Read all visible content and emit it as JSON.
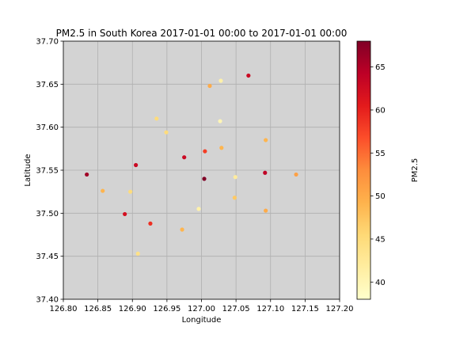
{
  "chart_data": {
    "type": "scatter",
    "title": "PM2.5 in South Korea 2017-01-01 00:00 to 2017-01-01 00:00",
    "xlabel": "Longitude",
    "ylabel": "Latitude",
    "xlim": [
      126.8,
      127.2
    ],
    "ylim": [
      37.4,
      37.7
    ],
    "xticks": [
      "126.80",
      "126.85",
      "126.90",
      "126.95",
      "127.00",
      "127.05",
      "127.10",
      "127.15",
      "127.20"
    ],
    "yticks": [
      "37.40",
      "37.45",
      "37.50",
      "37.55",
      "37.60",
      "37.65",
      "37.70"
    ],
    "grid": true,
    "background": "#d3d3d3",
    "colorbar": {
      "label": "PM2.5",
      "range": [
        38,
        68
      ],
      "ticks": [
        "40",
        "45",
        "50",
        "55",
        "60",
        "65"
      ],
      "colormap": "YlOrRd"
    },
    "points": [
      {
        "x": 126.834,
        "y": 37.545,
        "value": 66
      },
      {
        "x": 126.857,
        "y": 37.526,
        "value": 49
      },
      {
        "x": 126.889,
        "y": 37.499,
        "value": 62
      },
      {
        "x": 126.897,
        "y": 37.525,
        "value": 45
      },
      {
        "x": 126.905,
        "y": 37.556,
        "value": 63
      },
      {
        "x": 126.908,
        "y": 37.453,
        "value": 44
      },
      {
        "x": 126.926,
        "y": 37.488,
        "value": 59
      },
      {
        "x": 126.935,
        "y": 37.61,
        "value": 45
      },
      {
        "x": 126.949,
        "y": 37.594,
        "value": 45
      },
      {
        "x": 126.972,
        "y": 37.481,
        "value": 49
      },
      {
        "x": 126.975,
        "y": 37.565,
        "value": 63
      },
      {
        "x": 126.996,
        "y": 37.505,
        "value": 41
      },
      {
        "x": 127.004,
        "y": 37.54,
        "value": 68
      },
      {
        "x": 127.005,
        "y": 37.572,
        "value": 58
      },
      {
        "x": 127.012,
        "y": 37.648,
        "value": 50
      },
      {
        "x": 127.027,
        "y": 37.607,
        "value": 40
      },
      {
        "x": 127.028,
        "y": 37.654,
        "value": 41
      },
      {
        "x": 127.029,
        "y": 37.576,
        "value": 49
      },
      {
        "x": 127.048,
        "y": 37.518,
        "value": 47
      },
      {
        "x": 127.049,
        "y": 37.542,
        "value": 42
      },
      {
        "x": 127.068,
        "y": 37.66,
        "value": 63
      },
      {
        "x": 127.092,
        "y": 37.547,
        "value": 64
      },
      {
        "x": 127.093,
        "y": 37.585,
        "value": 49
      },
      {
        "x": 127.093,
        "y": 37.503,
        "value": 50
      },
      {
        "x": 127.137,
        "y": 37.545,
        "value": 51
      }
    ]
  }
}
